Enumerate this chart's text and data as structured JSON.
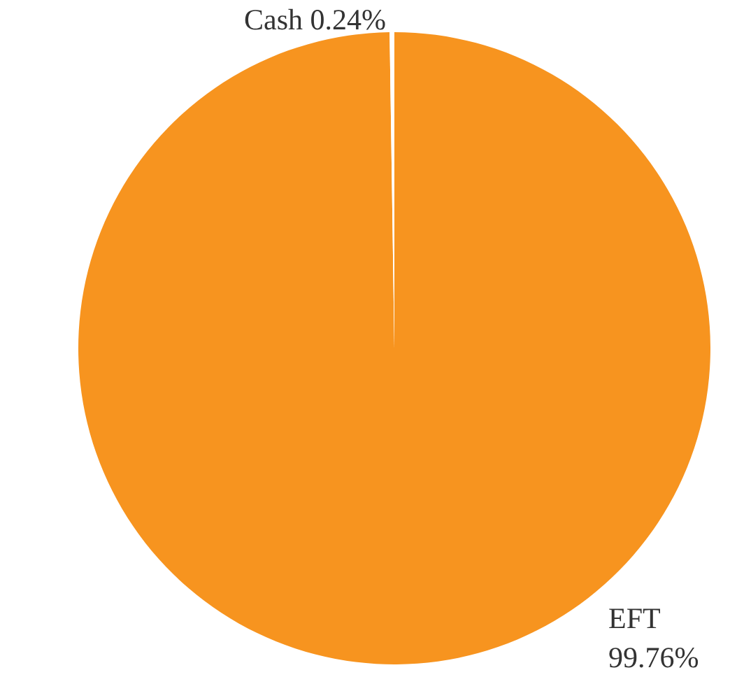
{
  "chart_data": {
    "type": "pie",
    "categories": [
      "EFT",
      "Cash"
    ],
    "values": [
      99.76,
      0.24
    ],
    "colors": [
      "#f7941f",
      "#ffffff"
    ],
    "value_labels": [
      "99.76%",
      "0.24%"
    ],
    "legend": false
  }
}
